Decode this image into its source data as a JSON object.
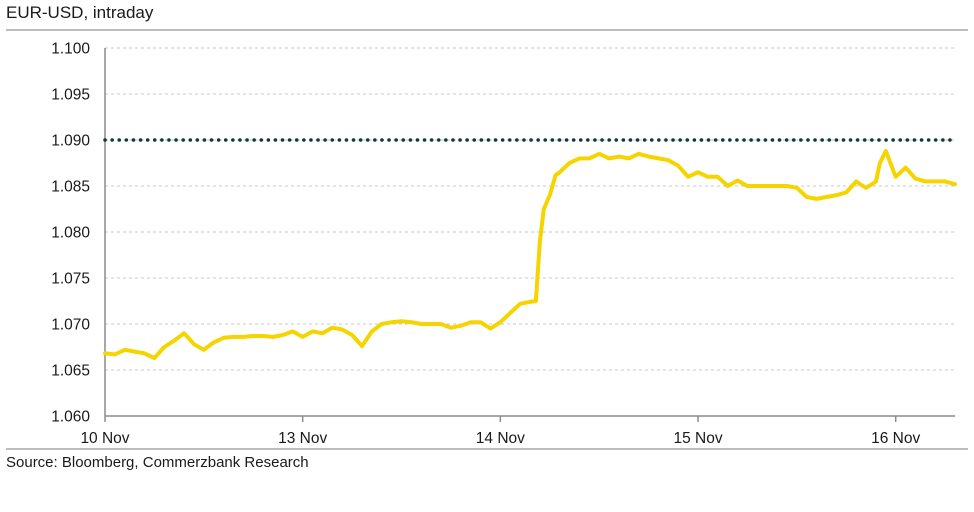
{
  "header": {
    "title": "EUR-USD, intraday"
  },
  "footer": {
    "source": "Source: Bloomberg, Commerzbank Research"
  },
  "chart_data": {
    "type": "line",
    "title": "EUR-USD, intraday",
    "xlabel": "",
    "ylabel": "",
    "ylim": [
      1.06,
      1.1
    ],
    "y_ticks": [
      "1.100",
      "1.095",
      "1.090",
      "1.085",
      "1.080",
      "1.075",
      "1.070",
      "1.065",
      "1.060"
    ],
    "x_ticks": [
      "10 Nov",
      "13 Nov",
      "14 Nov",
      "15 Nov",
      "16 Nov"
    ],
    "grid": "horizontal dashed",
    "reference_line": {
      "y": 1.09,
      "style": "dotted",
      "color": "#0d3b36"
    },
    "series": [
      {
        "color": "#f5d400",
        "x": [
          0,
          0.05,
          0.1,
          0.15,
          0.2,
          0.25,
          0.3,
          0.35,
          0.4,
          0.45,
          0.5,
          0.55,
          0.6,
          0.65,
          0.7,
          0.75,
          0.8,
          0.85,
          0.9,
          0.95,
          1.0,
          1.05,
          1.1,
          1.15,
          1.2,
          1.25,
          1.3,
          1.35,
          1.4,
          1.45,
          1.5,
          1.55,
          1.6,
          1.65,
          1.7,
          1.75,
          1.8,
          1.85,
          1.9,
          1.95,
          2.0,
          2.05,
          2.1,
          2.15,
          2.18,
          2.2,
          2.22,
          2.25,
          2.28,
          2.3,
          2.35,
          2.4,
          2.45,
          2.5,
          2.55,
          2.6,
          2.65,
          2.7,
          2.75,
          2.8,
          2.85,
          2.9,
          2.95,
          3.0,
          3.05,
          3.1,
          3.15,
          3.2,
          3.25,
          3.3,
          3.35,
          3.4,
          3.45,
          3.5,
          3.55,
          3.6,
          3.65,
          3.7,
          3.75,
          3.8,
          3.82,
          3.85,
          3.88,
          3.9,
          3.92,
          3.95,
          4.0,
          4.05,
          4.1,
          4.15,
          4.2,
          4.25,
          4.3
        ],
        "y": [
          1.0668,
          1.0667,
          1.0672,
          1.067,
          1.0668,
          1.0663,
          1.0675,
          1.0682,
          1.069,
          1.0678,
          1.0672,
          1.068,
          1.0685,
          1.0686,
          1.0686,
          1.0687,
          1.0687,
          1.0686,
          1.0688,
          1.0692,
          1.0686,
          1.0692,
          1.069,
          1.0696,
          1.0694,
          1.0688,
          1.0676,
          1.0692,
          1.07,
          1.0702,
          1.0703,
          1.0702,
          1.07,
          1.07,
          1.07,
          1.0696,
          1.0698,
          1.0702,
          1.0702,
          1.0695,
          1.0702,
          1.0712,
          1.0722,
          1.0724,
          1.0725,
          1.079,
          1.0825,
          1.084,
          1.0862,
          1.0865,
          1.0875,
          1.088,
          1.088,
          1.0885,
          1.088,
          1.0882,
          1.088,
          1.0885,
          1.0882,
          1.088,
          1.0878,
          1.0872,
          1.086,
          1.0865,
          1.086,
          1.086,
          1.085,
          1.0856,
          1.085,
          1.085,
          1.085,
          1.085,
          1.085,
          1.0848,
          1.0838,
          1.0836,
          1.0838,
          1.084,
          1.0843,
          1.0855,
          1.0852,
          1.0848,
          1.0852,
          1.0855,
          1.0875,
          1.0888,
          1.086,
          1.087,
          1.0858,
          1.0855,
          1.0855,
          1.0855,
          1.0852
        ]
      }
    ]
  }
}
